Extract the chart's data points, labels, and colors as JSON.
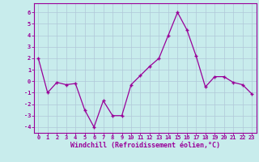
{
  "x": [
    0,
    1,
    2,
    3,
    4,
    5,
    6,
    7,
    8,
    9,
    10,
    11,
    12,
    13,
    14,
    15,
    16,
    17,
    18,
    19,
    20,
    21,
    22,
    23
  ],
  "y": [
    2,
    -1,
    -0.1,
    -0.3,
    -0.2,
    -2.5,
    -4.0,
    -1.7,
    -3.0,
    -3.0,
    -0.3,
    0.5,
    1.3,
    2.0,
    4.0,
    6.0,
    4.5,
    2.2,
    -0.5,
    0.4,
    0.4,
    -0.1,
    -0.3,
    -1.1
  ],
  "line_color": "#990099",
  "marker": "+",
  "marker_size": 3.5,
  "marker_lw": 1.0,
  "bg_color": "#c8ecec",
  "grid_color": "#b0c8d8",
  "xlabel": "Windchill (Refroidissement éolien,°C)",
  "xlim": [
    -0.5,
    23.5
  ],
  "ylim": [
    -4.5,
    6.8
  ],
  "yticks": [
    -4,
    -3,
    -2,
    -1,
    0,
    1,
    2,
    3,
    4,
    5,
    6
  ],
  "xticks": [
    0,
    1,
    2,
    3,
    4,
    5,
    6,
    7,
    8,
    9,
    10,
    11,
    12,
    13,
    14,
    15,
    16,
    17,
    18,
    19,
    20,
    21,
    22,
    23
  ],
  "xtick_labels": [
    "0",
    "1",
    "2",
    "3",
    "4",
    "5",
    "6",
    "7",
    "8",
    "9",
    "10",
    "11",
    "12",
    "13",
    "14",
    "15",
    "16",
    "17",
    "18",
    "19",
    "20",
    "21",
    "22",
    "23"
  ],
  "label_color": "#990099",
  "spine_color": "#990099",
  "tick_color": "#990099",
  "xlabel_fontsize": 6.0,
  "tick_fontsize": 5.0
}
